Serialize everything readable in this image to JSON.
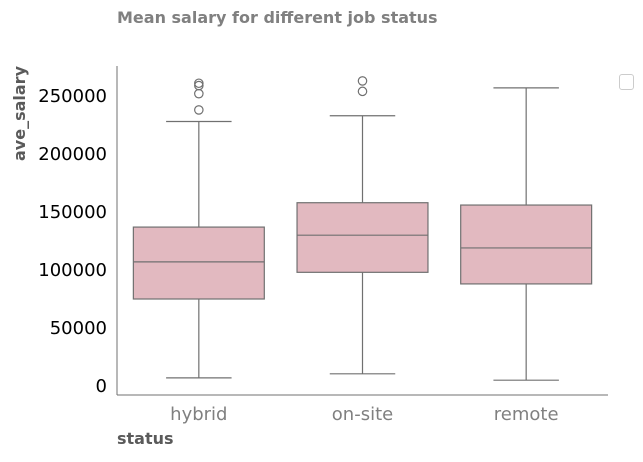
{
  "chart_data": {
    "type": "box",
    "title": "Mean salary for different job status",
    "xlabel": "status",
    "ylabel": "ave_salary",
    "categories": [
      "hybrid",
      "on-site",
      "remote"
    ],
    "ylim": [
      -15000,
      277000
    ],
    "yticks": [
      0,
      50000,
      100000,
      150000,
      200000,
      250000
    ],
    "ytick_labels": [
      "0",
      "50000",
      "100000",
      "150000",
      "200000",
      "250000"
    ],
    "boxes": [
      {
        "category": "hybrid",
        "whisker_low": 7000,
        "q1": 75000,
        "median": 107000,
        "q3": 137000,
        "whisker_high": 228000,
        "outliers": [
          238000,
          252000,
          259000,
          261000
        ]
      },
      {
        "category": "on-site",
        "whisker_low": 10500,
        "q1": 98000,
        "median": 130000,
        "q3": 158000,
        "whisker_high": 233000,
        "outliers": [
          254000,
          263000
        ]
      },
      {
        "category": "remote",
        "whisker_low": 5000,
        "q1": 88000,
        "median": 119000,
        "q3": 156000,
        "whisker_high": 257000,
        "outliers": []
      }
    ],
    "box_color": "#e2b9c0",
    "line_color": "#707070",
    "grid": false
  }
}
